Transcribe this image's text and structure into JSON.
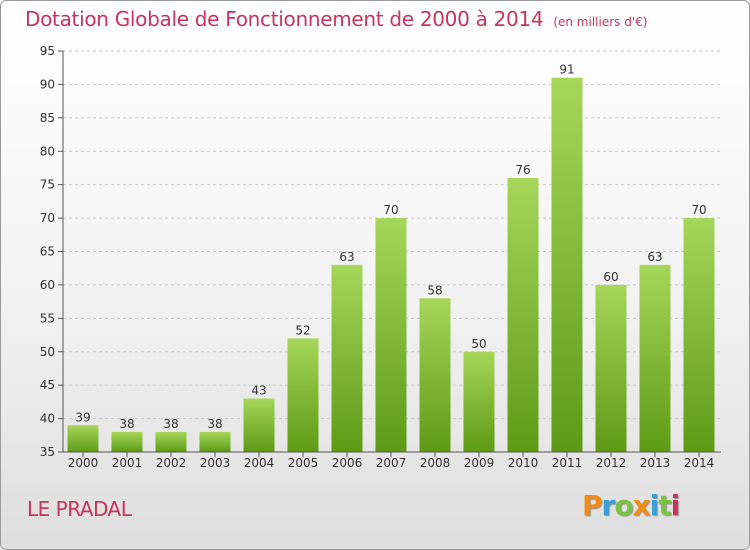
{
  "header": {
    "title": "Dotation Globale de Fonctionnement de 2000 à 2014",
    "unit": "(en milliers d'€)"
  },
  "footer": {
    "place": "LE PRADAL",
    "logo_text": "Proxiti"
  },
  "colors": {
    "title": "#c8345e",
    "bar_top": "#a6d65a",
    "bar_bottom": "#5e9a16",
    "grid": "#c8c8c8",
    "axis": "#555555",
    "logo_P": "#f08c1a",
    "logo_r": "#3aa0d8",
    "logo_o": "#7cc242",
    "logo_x": "#f08c1a",
    "logo_i": "#3aa0d8",
    "logo_t": "#7cc242",
    "logo_i2": "#c8345e"
  },
  "chart_data": {
    "type": "bar",
    "title": "Dotation Globale de Fonctionnement de 2000 à 2014",
    "subtitle": "(en milliers d'€)",
    "xlabel": "",
    "ylabel": "",
    "categories": [
      "2000",
      "2001",
      "2002",
      "2003",
      "2004",
      "2005",
      "2006",
      "2007",
      "2008",
      "2009",
      "2010",
      "2011",
      "2012",
      "2013",
      "2014"
    ],
    "values": [
      39,
      38,
      38,
      38,
      43,
      52,
      63,
      70,
      58,
      50,
      76,
      91,
      60,
      63,
      70
    ],
    "ylim": [
      35,
      95
    ],
    "yticks": [
      35,
      40,
      45,
      50,
      55,
      60,
      65,
      70,
      75,
      80,
      85,
      90,
      95
    ],
    "grid": "horizontal dashed",
    "data_labels": true,
    "legend": "none"
  }
}
